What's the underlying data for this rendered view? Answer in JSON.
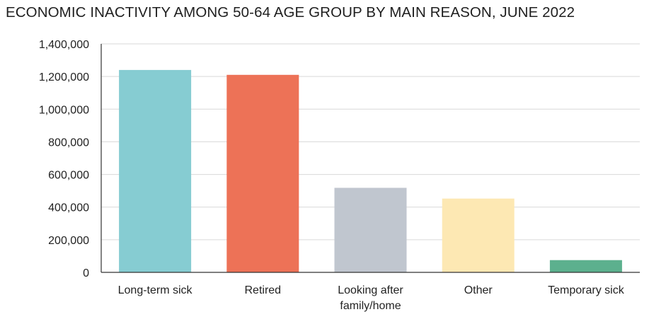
{
  "chart_data": {
    "type": "bar",
    "title": "ECONOMIC INACTIVITY AMONG 50-64 AGE GROUP BY MAIN REASON, JUNE 2022",
    "categories": [
      "Long-term sick",
      "Retired",
      "Looking after family/home",
      "Other",
      "Temporary sick"
    ],
    "category_lines": [
      [
        "Long-term sick"
      ],
      [
        "Retired"
      ],
      [
        "Looking after",
        "family/home"
      ],
      [
        "Other"
      ],
      [
        "Temporary sick"
      ]
    ],
    "values": [
      1240000,
      1210000,
      518000,
      452000,
      75000
    ],
    "colors": [
      "#86ccd2",
      "#ed7257",
      "#c0c6cf",
      "#fde8b3",
      "#5cb08e"
    ],
    "ylim": [
      0,
      1400000
    ],
    "yticks": [
      0,
      200000,
      400000,
      600000,
      800000,
      1000000,
      1200000,
      1400000
    ],
    "ytick_labels": [
      "0",
      "200,000",
      "400,000",
      "600,000",
      "800,000",
      "1,000,000",
      "1,200,000",
      "1,400,000"
    ],
    "xlabel": "",
    "ylabel": "",
    "grid": true,
    "legend": "none"
  }
}
